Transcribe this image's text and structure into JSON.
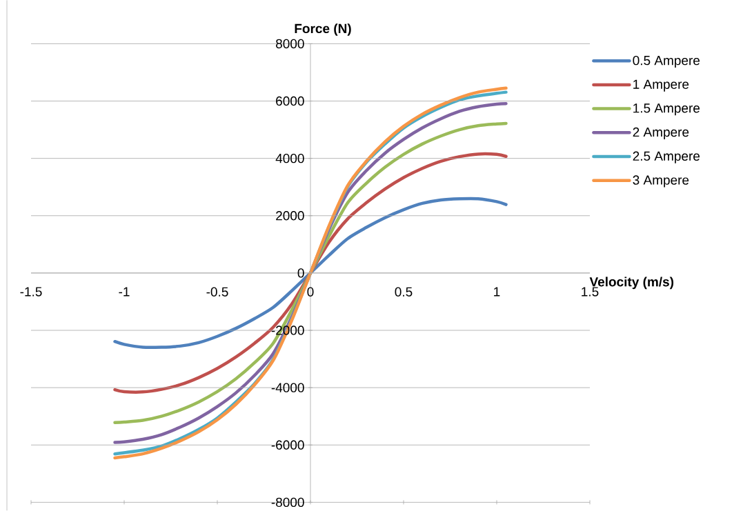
{
  "chart_data": {
    "type": "line",
    "xlabel": "Velocity (m/s)",
    "ylabel": "Force (N)",
    "x": [
      -1.05,
      -1.0,
      -0.9,
      -0.8,
      -0.7,
      -0.6,
      -0.5,
      -0.4,
      -0.3,
      -0.2,
      -0.1,
      0,
      0.1,
      0.2,
      0.3,
      0.4,
      0.5,
      0.6,
      0.7,
      0.8,
      0.9,
      1.0,
      1.05
    ],
    "xlim": [
      -1.5,
      1.5
    ],
    "xticks": [
      -1.5,
      -1,
      -0.5,
      0,
      0.5,
      1,
      1.5
    ],
    "ylim": [
      -8000,
      8000
    ],
    "yticks": [
      -8000,
      -6000,
      -4000,
      -2000,
      0,
      2000,
      4000,
      6000,
      8000
    ],
    "grid": "y",
    "legend": "right",
    "marker": "none",
    "line_style": "solid",
    "series": [
      {
        "name": "0.5 Ampere",
        "color": "#4f81bd",
        "values": [
          -2390,
          -2490,
          -2590,
          -2590,
          -2550,
          -2430,
          -2210,
          -1930,
          -1590,
          -1200,
          -620,
          0,
          620,
          1200,
          1590,
          1930,
          2210,
          2430,
          2550,
          2590,
          2590,
          2490,
          2390
        ]
      },
      {
        "name": "1 Ampere",
        "color": "#c0504d",
        "values": [
          -4070,
          -4140,
          -4150,
          -4060,
          -3900,
          -3650,
          -3330,
          -2930,
          -2450,
          -1890,
          -1080,
          0,
          1080,
          1890,
          2450,
          2930,
          3330,
          3650,
          3900,
          4060,
          4150,
          4140,
          4070
        ]
      },
      {
        "name": "1.5 Ampere",
        "color": "#9bbb59",
        "values": [
          -5220,
          -5200,
          -5140,
          -5000,
          -4780,
          -4500,
          -4140,
          -3690,
          -3130,
          -2450,
          -1290,
          0,
          1290,
          2450,
          3130,
          3690,
          4140,
          4500,
          4780,
          5000,
          5140,
          5200,
          5220
        ]
      },
      {
        "name": "2 Ampere",
        "color": "#8064a2",
        "values": [
          -5910,
          -5890,
          -5800,
          -5640,
          -5380,
          -5060,
          -4660,
          -4180,
          -3570,
          -2810,
          -1530,
          0,
          1530,
          2810,
          3570,
          4180,
          4660,
          5060,
          5380,
          5640,
          5800,
          5890,
          5910
        ]
      },
      {
        "name": "2.5 Ampere",
        "color": "#4bacc6",
        "values": [
          -6310,
          -6270,
          -6180,
          -6040,
          -5780,
          -5460,
          -5060,
          -4500,
          -3860,
          -3010,
          -1610,
          0,
          1610,
          3010,
          3860,
          4500,
          5060,
          5460,
          5780,
          6040,
          6180,
          6270,
          6310
        ]
      },
      {
        "name": "3 Ampere",
        "color": "#f79646",
        "values": [
          -6450,
          -6410,
          -6310,
          -6120,
          -5860,
          -5540,
          -5120,
          -4580,
          -3900,
          -3050,
          -1650,
          0,
          1650,
          3050,
          3900,
          4580,
          5120,
          5540,
          5860,
          6120,
          6310,
          6410,
          6450
        ]
      }
    ]
  }
}
